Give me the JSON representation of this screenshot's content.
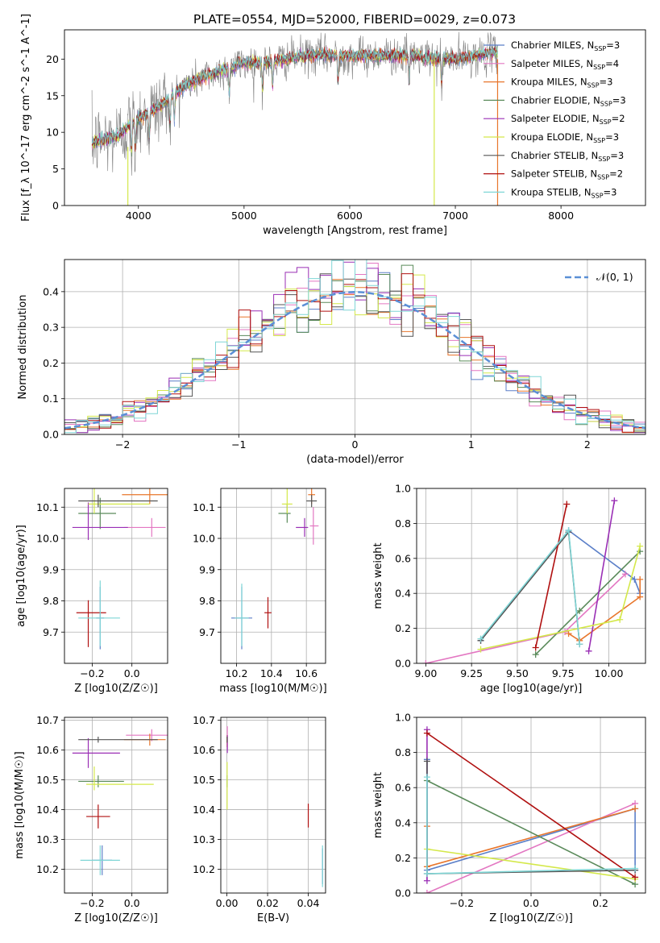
{
  "figure": {
    "title": "PLATE=0554, MJD=52000, FIBERID=0029, z=0.073"
  },
  "models": [
    {
      "name": "Chabrier MILES",
      "nssp": "3",
      "color": "#5b7fc8"
    },
    {
      "name": "Salpeter MILES",
      "nssp": "4",
      "color": "#e377c2"
    },
    {
      "name": "Kroupa MILES",
      "nssp": "3",
      "color": "#e8762c"
    },
    {
      "name": "Chabrier ELODIE",
      "nssp": "3",
      "color": "#5a8a5a"
    },
    {
      "name": "Salpeter ELODIE",
      "nssp": "2",
      "color": "#9a2fb5"
    },
    {
      "name": "Kroupa ELODIE",
      "nssp": "3",
      "color": "#d4e84a"
    },
    {
      "name": "Chabrier STELIB",
      "nssp": "3",
      "color": "#555555"
    },
    {
      "name": "Salpeter STELIB",
      "nssp": "2",
      "color": "#b01010"
    },
    {
      "name": "Kroupa STELIB",
      "nssp": "3",
      "color": "#7fd6d6"
    }
  ],
  "chart_data": [
    {
      "id": "spectrum",
      "type": "line",
      "xlabel": "wavelength [Angstrom, rest frame]",
      "ylabel": "Flux [f_λ 10^-17 erg cm^-2 s^-1 A^-1]",
      "xlim": [
        3300,
        8800
      ],
      "ylim": [
        0,
        24
      ],
      "xticks": [
        4000,
        5000,
        6000,
        7000,
        8000
      ],
      "yticks": [
        0,
        5,
        10,
        15,
        20
      ],
      "grid": false,
      "legend_position": "top-right",
      "data_color": "#808080",
      "continuum_x": [
        3550,
        3800,
        4000,
        4200,
        4400,
        4600,
        4800,
        5000,
        5200,
        5400,
        5600,
        5800,
        6000,
        6200,
        6400,
        6600,
        6800,
        7000,
        7200,
        7400
      ],
      "continuum_y": [
        8.5,
        9.5,
        12,
        13.5,
        16,
        17.5,
        18.5,
        19.5,
        19.5,
        20,
        20.5,
        20.5,
        20.5,
        20.5,
        20.5,
        20.5,
        20,
        20,
        20.5,
        21
      ]
    },
    {
      "id": "residual_histogram",
      "type": "line",
      "xlabel": "(data-model)/error",
      "ylabel": "Normed distribution",
      "xlim": [
        -2.5,
        2.5
      ],
      "ylim": [
        0,
        0.49
      ],
      "xticks": [
        -2,
        -1,
        0,
        1,
        2
      ],
      "yticks": [
        0.0,
        0.1,
        0.2,
        0.3,
        0.4
      ],
      "grid": true,
      "legend_position": "top-right",
      "reference_label": "𝒩(0, 1)",
      "reference_color": "#5b8fd6",
      "reference_curve": "normal(0,1)"
    },
    {
      "id": "age_vs_Z",
      "type": "scatter",
      "xlabel": "Z [log10(Z/Z☉)]",
      "ylabel": "age [log10(age/yr)]",
      "xlim": [
        -0.34,
        0.18
      ],
      "ylim": [
        9.6,
        10.16
      ],
      "xticks": [
        -0.2,
        0.0
      ],
      "yticks": [
        9.7,
        9.8,
        9.9,
        10.0,
        10.1
      ],
      "grid": true,
      "points": [
        {
          "model": 0,
          "x": -0.16,
          "y": 9.745,
          "xerr": [
            0.02,
            0.02
          ],
          "yerr": [
            0.1,
            0.1
          ]
        },
        {
          "model": 1,
          "x": 0.1,
          "y": 10.035,
          "xerr": [
            0.14,
            0.07
          ],
          "yerr": [
            0.03,
            0.03
          ]
        },
        {
          "model": 2,
          "x": 0.09,
          "y": 10.14,
          "xerr": [
            0.14,
            0.09
          ],
          "yerr": [
            0.03,
            0.03
          ]
        },
        {
          "model": 3,
          "x": -0.16,
          "y": 10.08,
          "xerr": [
            0.11,
            0.08
          ],
          "yerr": [
            0.05,
            0.05
          ]
        },
        {
          "model": 4,
          "x": -0.22,
          "y": 10.035,
          "xerr": [
            0.08,
            0.2
          ],
          "yerr": [
            0.04,
            0.08
          ]
        },
        {
          "model": 5,
          "x": -0.19,
          "y": 10.11,
          "xerr": [
            0.03,
            0.28
          ],
          "yerr": [
            0.03,
            0.12
          ]
        },
        {
          "model": 6,
          "x": -0.17,
          "y": 10.12,
          "xerr": [
            0.1,
            0.3
          ],
          "yerr": [
            0.02,
            0.02
          ]
        },
        {
          "model": 7,
          "x": -0.22,
          "y": 9.762,
          "xerr": [
            0.06,
            0.09
          ],
          "yerr": [
            0.11,
            0.04
          ]
        },
        {
          "model": 8,
          "x": -0.16,
          "y": 9.745,
          "xerr": [
            0.11,
            0.1
          ],
          "yerr": [
            0.09,
            0.12
          ]
        }
      ]
    },
    {
      "id": "age_vs_mass",
      "type": "scatter",
      "xlabel": "mass [log10(M/M☉)]",
      "ylabel": "",
      "xlim": [
        10.11,
        10.71
      ],
      "ylim": [
        9.6,
        10.16
      ],
      "xticks": [
        10.2,
        10.4,
        10.6
      ],
      "yticks": [
        9.7,
        9.8,
        9.9,
        10.0,
        10.1
      ],
      "grid": true,
      "points": [
        {
          "model": 0,
          "x": 10.23,
          "y": 9.745,
          "xerr": [
            0.06,
            0.06
          ],
          "yerr": [
            0.1,
            0.1
          ]
        },
        {
          "model": 1,
          "x": 10.64,
          "y": 10.04,
          "xerr": [
            0.02,
            0.03
          ],
          "yerr": [
            0.06,
            0.06
          ]
        },
        {
          "model": 2,
          "x": 10.63,
          "y": 10.14,
          "xerr": [
            0.02,
            0.02
          ],
          "yerr": [
            0.03,
            0.03
          ]
        },
        {
          "model": 3,
          "x": 10.49,
          "y": 10.08,
          "xerr": [
            0.05,
            0.02
          ],
          "yerr": [
            0.03,
            0.03
          ]
        },
        {
          "model": 4,
          "x": 10.59,
          "y": 10.035,
          "xerr": [
            0.05,
            0.02
          ],
          "yerr": [
            0.03,
            0.03
          ]
        },
        {
          "model": 5,
          "x": 10.49,
          "y": 10.11,
          "xerr": [
            0.03,
            0.03
          ],
          "yerr": [
            0.03,
            0.12
          ]
        },
        {
          "model": 6,
          "x": 10.63,
          "y": 10.12,
          "xerr": [
            0.03,
            0.03
          ],
          "yerr": [
            0.02,
            0.02
          ]
        },
        {
          "model": 7,
          "x": 10.38,
          "y": 9.762,
          "xerr": [
            0.02,
            0.02
          ],
          "yerr": [
            0.05,
            0.05
          ]
        },
        {
          "model": 8,
          "x": 10.23,
          "y": 9.745,
          "xerr": [
            0.04,
            0.04
          ],
          "yerr": [
            0.09,
            0.11
          ]
        }
      ]
    },
    {
      "id": "mass_weight_vs_age",
      "type": "line",
      "xlabel": "age [log10(age/yr)]",
      "ylabel": "mass weight",
      "xlim": [
        8.95,
        10.2
      ],
      "ylim": [
        0,
        1
      ],
      "xticks": [
        9.0,
        9.25,
        9.5,
        9.75,
        10.0
      ],
      "yticks": [
        0.0,
        0.2,
        0.4,
        0.6,
        0.8,
        1.0
      ],
      "grid": true,
      "series": [
        {
          "model": 0,
          "x": [
            9.3,
            9.78,
            10.14,
            10.17
          ],
          "y": [
            0.13,
            0.76,
            0.48,
            0.4
          ]
        },
        {
          "model": 1,
          "x": [
            9.0,
            9.76,
            10.09
          ],
          "y": [
            0.0,
            0.18,
            0.51
          ]
        },
        {
          "model": 2,
          "x": [
            9.78,
            9.84,
            10.17,
            10.17
          ],
          "y": [
            0.17,
            0.13,
            0.38,
            0.48
          ]
        },
        {
          "model": 3,
          "x": [
            9.6,
            9.84,
            10.17
          ],
          "y": [
            0.05,
            0.3,
            0.64
          ]
        },
        {
          "model": 4,
          "x": [
            9.89,
            10.03
          ],
          "y": [
            0.07,
            0.93
          ]
        },
        {
          "model": 5,
          "x": [
            9.3,
            10.06,
            10.17
          ],
          "y": [
            0.08,
            0.25,
            0.67
          ]
        },
        {
          "model": 6,
          "x": [
            9.3,
            9.78,
            9.84
          ],
          "y": [
            0.13,
            0.75,
            0.11
          ]
        },
        {
          "model": 7,
          "x": [
            9.6,
            9.77
          ],
          "y": [
            0.09,
            0.91
          ]
        },
        {
          "model": 8,
          "x": [
            9.3,
            9.78,
            9.84
          ],
          "y": [
            0.14,
            0.76,
            0.11
          ]
        }
      ]
    },
    {
      "id": "mass_vs_Z",
      "type": "scatter",
      "xlabel": "Z [log10(Z/Z☉)]",
      "ylabel": "mass [log10(M/M☉)]",
      "xlim": [
        -0.34,
        0.18
      ],
      "ylim": [
        10.12,
        10.71
      ],
      "xticks": [
        -0.2,
        0.0
      ],
      "yticks": [
        10.2,
        10.3,
        10.4,
        10.5,
        10.6,
        10.7
      ],
      "grid": true,
      "points": [
        {
          "model": 0,
          "x": -0.15,
          "y": 10.23,
          "xerr": [
            0.05,
            0.05
          ],
          "yerr": [
            0.05,
            0.05
          ]
        },
        {
          "model": 1,
          "x": 0.1,
          "y": 10.65,
          "xerr": [
            0.13,
            0.08
          ],
          "yerr": [
            0.02,
            0.02
          ]
        },
        {
          "model": 2,
          "x": 0.09,
          "y": 10.635,
          "xerr": [
            0.13,
            0.08
          ],
          "yerr": [
            0.02,
            0.02
          ]
        },
        {
          "model": 3,
          "x": -0.17,
          "y": 10.495,
          "xerr": [
            0.1,
            0.13
          ],
          "yerr": [
            0.02,
            0.02
          ]
        },
        {
          "model": 4,
          "x": -0.22,
          "y": 10.59,
          "xerr": [
            0.08,
            0.16
          ],
          "yerr": [
            0.05,
            0.05
          ]
        },
        {
          "model": 5,
          "x": -0.19,
          "y": 10.485,
          "xerr": [
            0.04,
            0.3
          ],
          "yerr": [
            0.02,
            0.06
          ]
        },
        {
          "model": 6,
          "x": -0.17,
          "y": 10.635,
          "xerr": [
            0.1,
            0.3
          ],
          "yerr": [
            0.01,
            0.01
          ]
        },
        {
          "model": 7,
          "x": -0.17,
          "y": 10.377,
          "xerr": [
            0.06,
            0.06
          ],
          "yerr": [
            0.04,
            0.04
          ]
        },
        {
          "model": 8,
          "x": -0.16,
          "y": 10.23,
          "xerr": [
            0.1,
            0.1
          ],
          "yerr": [
            0.05,
            0.05
          ]
        }
      ]
    },
    {
      "id": "mass_vs_ebv",
      "type": "scatter",
      "xlabel": "E(B-V)",
      "ylabel": "",
      "xlim": [
        -0.003,
        0.0485
      ],
      "ylim": [
        10.12,
        10.71
      ],
      "xticks": [
        0.0,
        0.02,
        0.04
      ],
      "yticks": [
        10.2,
        10.3,
        10.4,
        10.5,
        10.6,
        10.7
      ],
      "grid": true,
      "points": [
        {
          "model": 0,
          "x": 0.047,
          "y": 10.21,
          "xerr": [
            0,
            0
          ],
          "yerr": [
            0.06,
            0.06
          ]
        },
        {
          "model": 1,
          "x": 0.0002,
          "y": 10.64,
          "xerr": [
            0,
            0
          ],
          "yerr": [
            0.04,
            0.04
          ]
        },
        {
          "model": 2,
          "x": 0.0001,
          "y": 10.63,
          "xerr": [
            0,
            0
          ],
          "yerr": [
            0.02,
            0.02
          ]
        },
        {
          "model": 3,
          "x": 0.0001,
          "y": 10.495,
          "xerr": [
            0,
            0
          ],
          "yerr": [
            0.02,
            0.02
          ]
        },
        {
          "model": 4,
          "x": 0.0002,
          "y": 10.62,
          "xerr": [
            0,
            0
          ],
          "yerr": [
            0.03,
            0.03
          ]
        },
        {
          "model": 5,
          "x": 0.0001,
          "y": 10.48,
          "xerr": [
            0,
            0
          ],
          "yerr": [
            0.08,
            0.08
          ]
        },
        {
          "model": 6,
          "x": 0.0001,
          "y": 10.635,
          "xerr": [
            0,
            0
          ],
          "yerr": [
            0.01,
            0.01
          ]
        },
        {
          "model": 7,
          "x": 0.04,
          "y": 10.38,
          "xerr": [
            0,
            0
          ],
          "yerr": [
            0.04,
            0.04
          ]
        },
        {
          "model": 8,
          "x": 0.047,
          "y": 10.21,
          "xerr": [
            0,
            0
          ],
          "yerr": [
            0.07,
            0.07
          ]
        }
      ]
    },
    {
      "id": "mass_weight_vs_Z",
      "type": "line",
      "xlabel": "Z [log10(Z/Z☉)]",
      "ylabel": "mass weight",
      "xlim": [
        -0.33,
        0.33
      ],
      "ylim": [
        0,
        1
      ],
      "xticks": [
        -0.2,
        0.0,
        0.2
      ],
      "yticks": [
        0.0,
        0.2,
        0.4,
        0.6,
        0.8,
        1.0
      ],
      "grid": true,
      "series": [
        {
          "model": 0,
          "x": [
            -0.3,
            -0.3,
            0.3,
            0.3
          ],
          "y": [
            0.76,
            0.13,
            0.48,
            0.13
          ]
        },
        {
          "model": 1,
          "x": [
            -0.3,
            0.3
          ],
          "y": [
            0.0,
            0.51
          ]
        },
        {
          "model": 2,
          "x": [
            -0.3,
            -0.3,
            0.3
          ],
          "y": [
            0.38,
            0.15,
            0.48
          ]
        },
        {
          "model": 3,
          "x": [
            -0.3,
            0.3
          ],
          "y": [
            0.64,
            0.05
          ]
        },
        {
          "model": 4,
          "x": [
            -0.3,
            -0.3
          ],
          "y": [
            0.93,
            0.07
          ]
        },
        {
          "model": 5,
          "x": [
            -0.3,
            0.3
          ],
          "y": [
            0.25,
            0.08
          ]
        },
        {
          "model": 6,
          "x": [
            -0.3,
            -0.3,
            0.3
          ],
          "y": [
            0.75,
            0.11,
            0.13
          ]
        },
        {
          "model": 7,
          "x": [
            -0.3,
            0.3
          ],
          "y": [
            0.91,
            0.09
          ]
        },
        {
          "model": 8,
          "x": [
            -0.3,
            -0.3,
            0.3
          ],
          "y": [
            0.66,
            0.11,
            0.14
          ]
        }
      ]
    }
  ]
}
